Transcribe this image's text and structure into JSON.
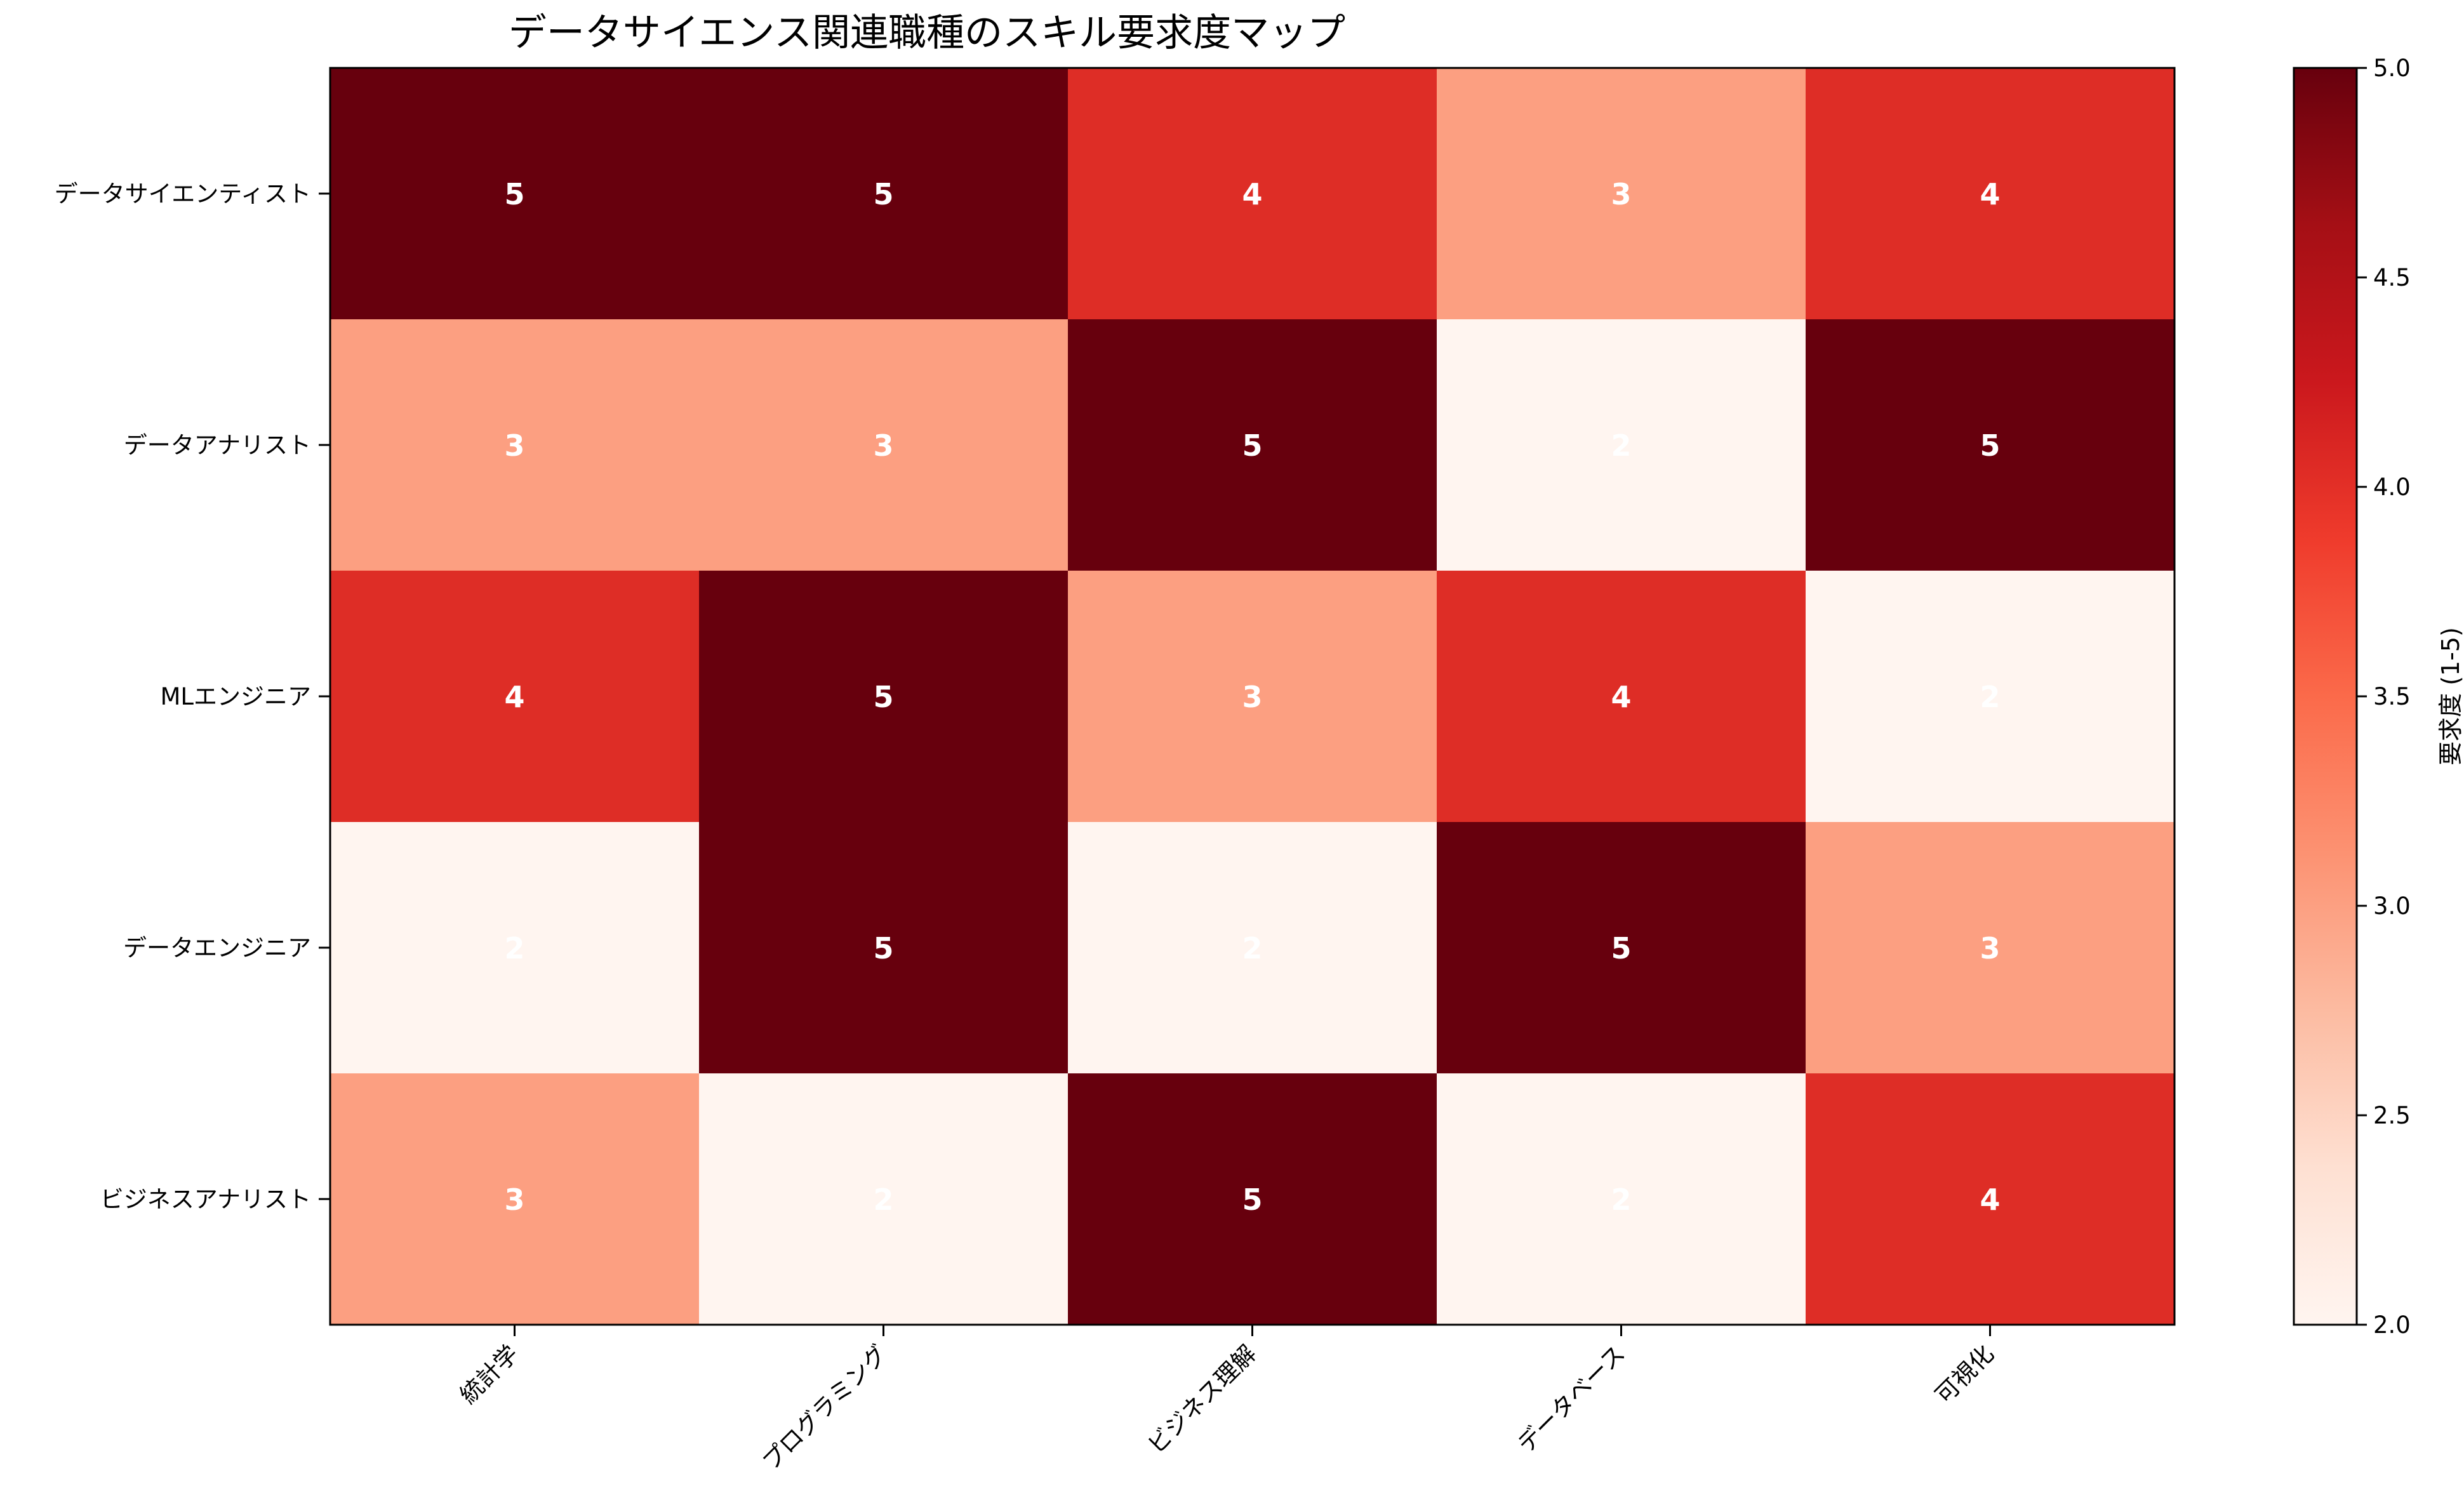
{
  "chart_data": {
    "type": "heatmap",
    "title": "データサイエンス関連職種のスキル要求度マップ",
    "rows": [
      "データサイエンティスト",
      "データアナリスト",
      "MLエンジニア",
      "データエンジニア",
      "ビジネスアナリスト"
    ],
    "columns": [
      "統計学",
      "プログラミング",
      "ビジネス理解",
      "データベース",
      "可視化"
    ],
    "values": [
      [
        5,
        5,
        4,
        3,
        4
      ],
      [
        3,
        3,
        5,
        2,
        5
      ],
      [
        4,
        5,
        3,
        4,
        2
      ],
      [
        2,
        5,
        2,
        5,
        3
      ],
      [
        3,
        2,
        5,
        2,
        4
      ]
    ],
    "colormap": "Reds",
    "vmin": 2,
    "vmax": 5,
    "colorbar": {
      "label": "要求度 (1-5)",
      "ticks": [
        "2.0",
        "2.5",
        "3.0",
        "3.5",
        "4.0",
        "4.5",
        "5.0"
      ]
    },
    "colors": {
      "low": "#fff5f0",
      "mid": "#fc9f81",
      "high": "#de2d26",
      "max": "#67000d"
    }
  }
}
